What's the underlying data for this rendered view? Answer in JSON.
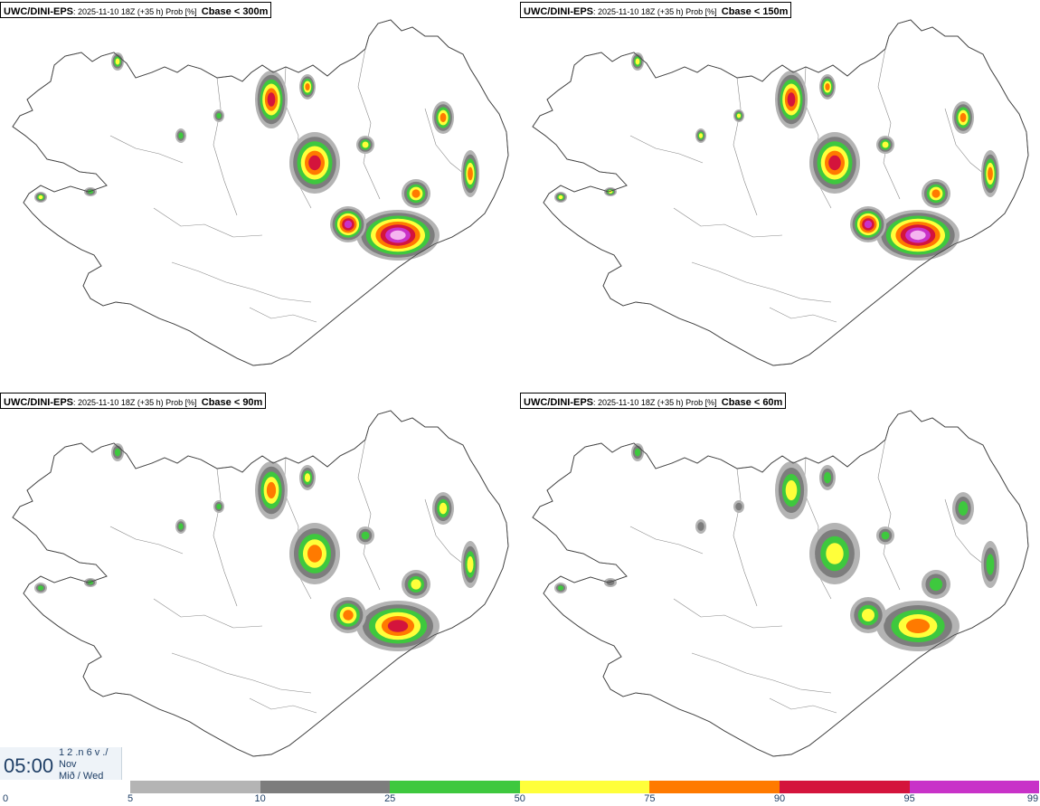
{
  "panels": [
    {
      "model": "UWC/DINI-EPS",
      "meta": ": 2025-11-10 18Z (+35 h) Prob [%]",
      "variable": "Cbase < 300m",
      "intensity": 1.0
    },
    {
      "model": "UWC/DINI-EPS",
      "meta": ": 2025-11-10 18Z (+35 h) Prob [%]",
      "variable": "Cbase < 150m",
      "intensity": 0.85
    },
    {
      "model": "UWC/DINI-EPS",
      "meta": ": 2025-11-10 18Z (+35 h) Prob [%]",
      "variable": "Cbase < 90m",
      "intensity": 0.6
    },
    {
      "model": "UWC/DINI-EPS",
      "meta": ": 2025-11-10 18Z (+35 h) Prob [%]",
      "variable": "Cbase < 60m",
      "intensity": 0.45
    }
  ],
  "timestamp": {
    "clock": "05:00",
    "line1": "1 2 .n 6 v ./",
    "line2": "Nov",
    "line3": "Mið / Wed"
  },
  "colorbar": {
    "ticks": [
      "0",
      "5",
      "10",
      "25",
      "50",
      "75",
      "90",
      "95",
      "99"
    ],
    "colors": [
      "#ffffff",
      "#b4b4b4",
      "#7d7d7d",
      "#3ec83e",
      "#ffff3a",
      "#ff7a00",
      "#d4143c",
      "#c832c8",
      "#f5b4f0"
    ]
  }
}
